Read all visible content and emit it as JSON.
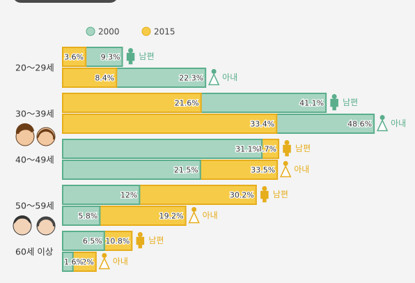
{
  "chart_data": {
    "type": "bar",
    "series": [
      {
        "name": "2000",
        "color": "#a8d5c2",
        "stroke": "#5aae8c"
      },
      {
        "name": "2015",
        "color": "#f6cb48",
        "stroke": "#e6ad1c"
      }
    ],
    "groups": [
      {
        "label": "20～29세",
        "rows": [
          {
            "name": "남편",
            "values": [
              9.3,
              3.6
            ],
            "value_labels": [
              "9.3%",
              "3.6%"
            ]
          },
          {
            "name": "아내",
            "values": [
              22.3,
              8.4
            ],
            "value_labels": [
              "22.3%",
              "8.4%"
            ]
          }
        ]
      },
      {
        "label": "30～39세",
        "rows": [
          {
            "name": "남편",
            "values": [
              41.1,
              21.6
            ],
            "value_labels": [
              "41.1%",
              "21.6%"
            ]
          },
          {
            "name": "아내",
            "values": [
              48.6,
              33.4
            ],
            "value_labels": [
              "48.6%",
              "33.4%"
            ]
          }
        ]
      },
      {
        "label": "40～49세",
        "rows": [
          {
            "name": "남편",
            "values": [
              31.1,
              33.7
            ],
            "value_labels": [
              "31.1%",
              "33.7%"
            ]
          },
          {
            "name": "아내",
            "values": [
              21.5,
              33.5
            ],
            "value_labels": [
              "21.5%",
              "33.5%"
            ]
          }
        ]
      },
      {
        "label": "50～59세",
        "rows": [
          {
            "name": "남편",
            "values": [
              12,
              30.2
            ],
            "value_labels": [
              "12%",
              "30.2%"
            ]
          },
          {
            "name": "아내",
            "values": [
              5.8,
              19.2
            ],
            "value_labels": [
              "5.8%",
              "19.2%"
            ]
          }
        ]
      },
      {
        "label": "60세 이상",
        "rows": [
          {
            "name": "남편",
            "values": [
              6.5,
              10.8
            ],
            "value_labels": [
              "6.5%",
              "10.8%"
            ]
          },
          {
            "name": "아내",
            "values": [
              1.6,
              5.2
            ],
            "value_labels": [
              "1.6%",
              "5.2%"
            ]
          }
        ]
      }
    ]
  }
}
